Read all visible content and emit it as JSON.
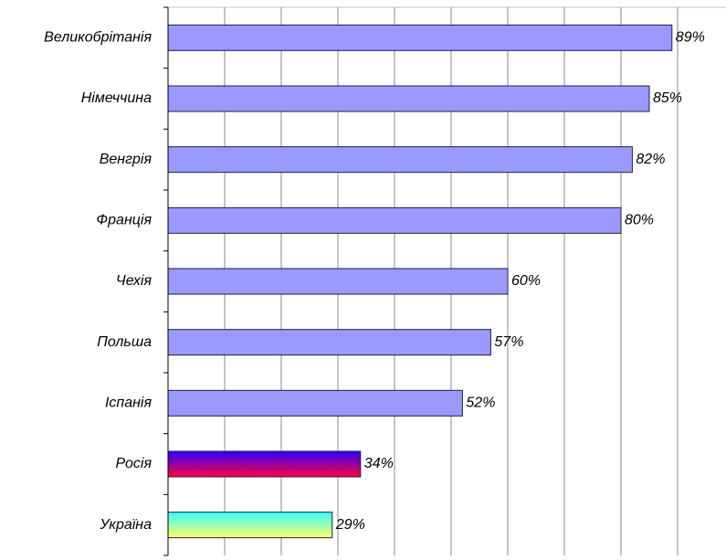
{
  "chart_data": {
    "type": "barh",
    "categories": [
      "Великобрітанія",
      "Німеччина",
      "Венгрія",
      "Франція",
      "Чехія",
      "Польша",
      "Іспанія",
      "Росія",
      "Україна"
    ],
    "values": [
      89,
      85,
      82,
      80,
      60,
      57,
      52,
      34,
      29
    ],
    "value_labels": [
      "89%",
      "85%",
      "82%",
      "80%",
      "60%",
      "57%",
      "52%",
      "34%",
      "29%"
    ],
    "colors": [
      "#9999ff",
      "#9999ff",
      "#9999ff",
      "#9999ff",
      "#9999ff",
      "#9999ff",
      "#9999ff",
      [
        "#2a00ff",
        "#ff0040"
      ],
      [
        "#33ffff",
        "#ffff66"
      ]
    ],
    "xlim": [
      0,
      100
    ],
    "xticks": [
      0,
      10,
      20,
      30,
      40,
      50,
      60,
      70,
      80,
      90
    ],
    "grid": true
  }
}
